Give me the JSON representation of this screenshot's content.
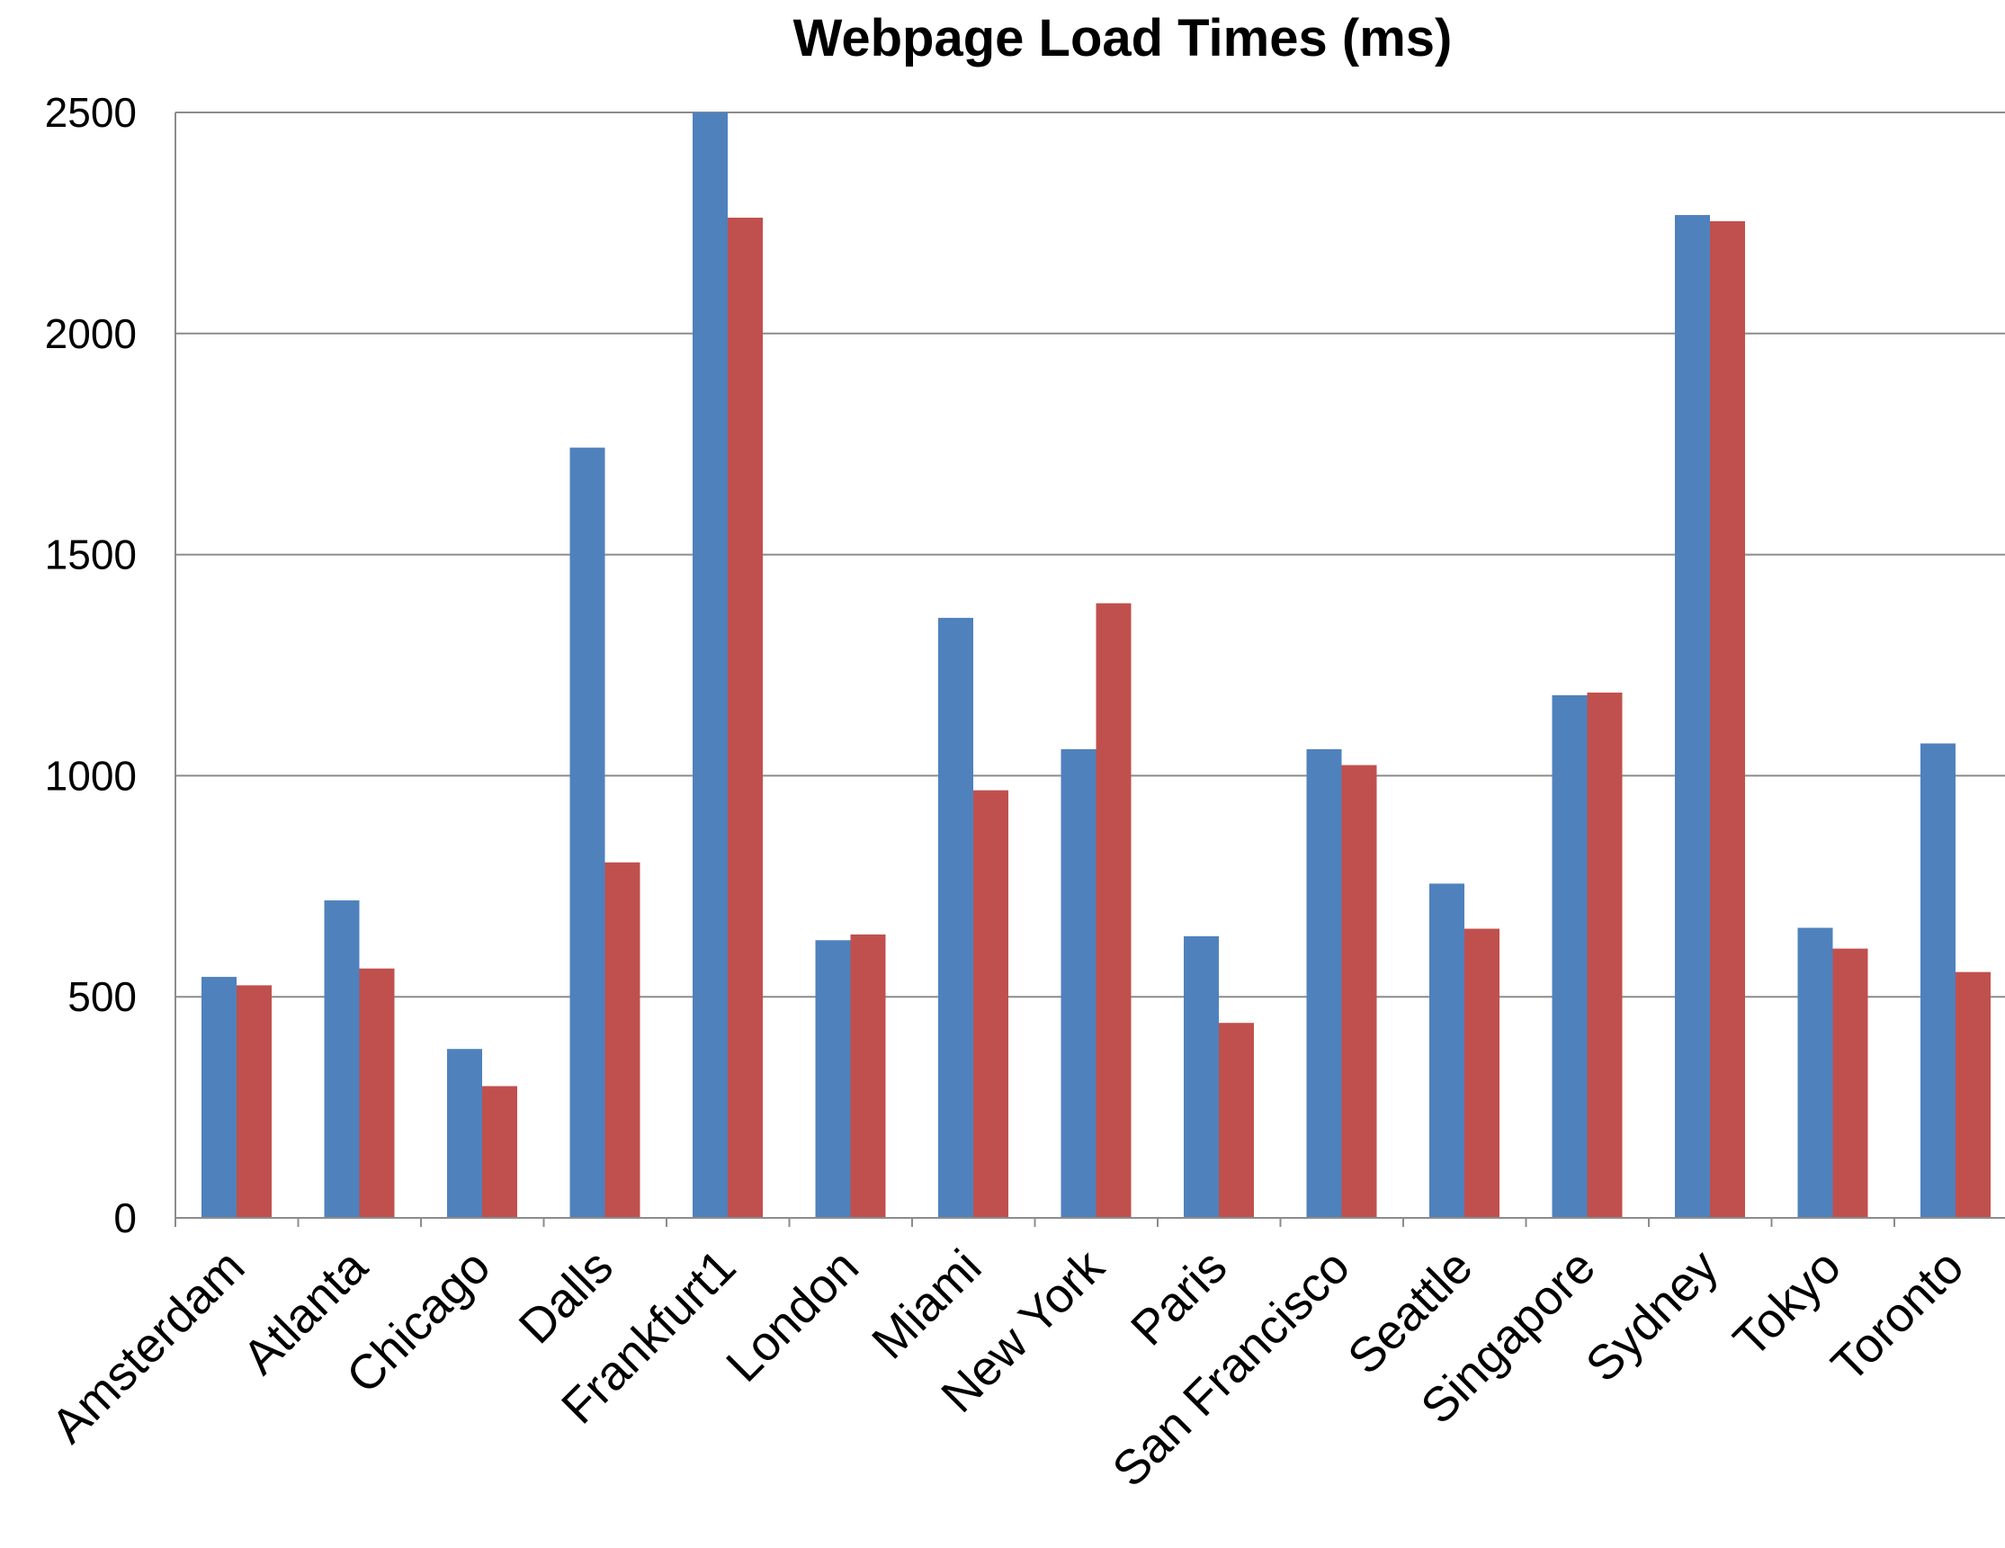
{
  "chart_data": {
    "type": "bar",
    "title": "Webpage Load Times (ms)",
    "xlabel": "",
    "ylabel": "",
    "ylim": [
      0,
      2500
    ],
    "yticks": [
      0,
      500,
      1000,
      1500,
      2000,
      2500
    ],
    "grid": true,
    "legend": "none",
    "categories": [
      "Amsterdam",
      "Atlanta",
      "Chicago",
      "Dalls",
      "Frankfurt1",
      "London",
      "Miami",
      "New York",
      "Paris",
      "San Francisco",
      "Seattle",
      "Singapore",
      "Sydney",
      "Tokyo",
      "Toronto"
    ],
    "series": [
      {
        "color": "#4F81BD",
        "values": [
          545,
          718,
          382,
          1742,
          2500,
          628,
          1357,
          1060,
          637,
          1060,
          756,
          1182,
          2268,
          656,
          1073
        ]
      },
      {
        "color": "#C0504D",
        "values": [
          526,
          564,
          298,
          804,
          2262,
          641,
          967,
          1390,
          441,
          1024,
          654,
          1188,
          2254,
          609,
          556
        ]
      }
    ]
  }
}
